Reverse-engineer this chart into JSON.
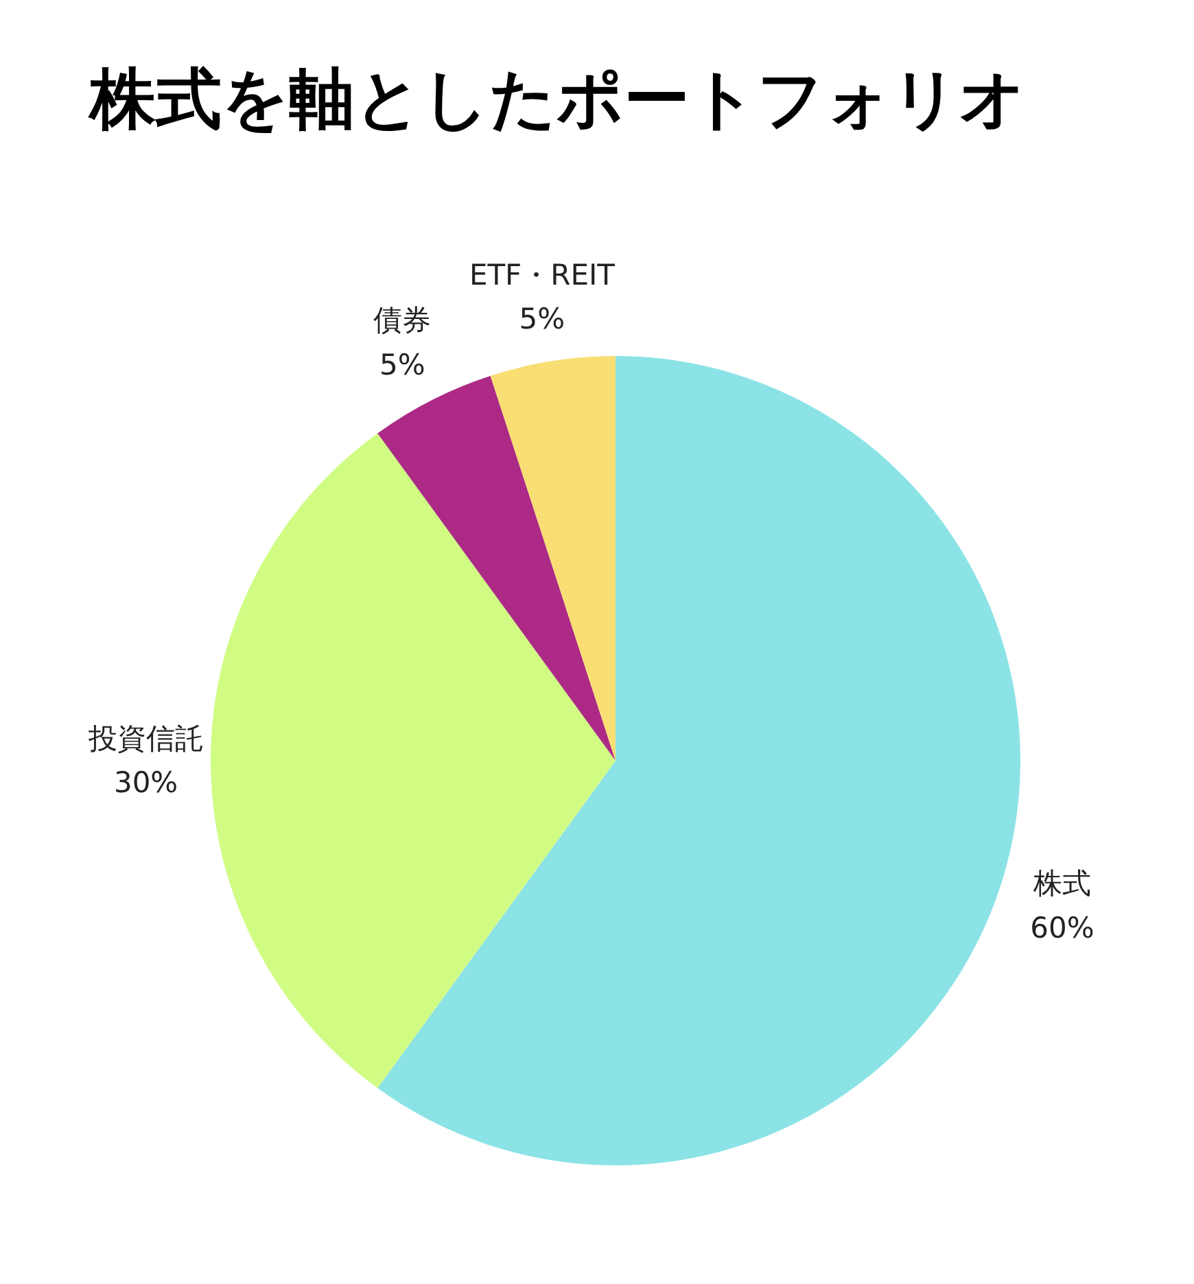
{
  "chart_data": {
    "type": "pie",
    "title": "株式を軸としたポートフォリオ",
    "categories": [
      "株式",
      "投資信託",
      "債券",
      "ETF・REIT"
    ],
    "values": [
      60,
      30,
      5,
      5
    ],
    "colors": [
      "#8ce3e6",
      "#d0fc84",
      "#ac2a85",
      "#f9de74"
    ],
    "value_labels": [
      "60%",
      "30%",
      "5%",
      "5%"
    ]
  }
}
